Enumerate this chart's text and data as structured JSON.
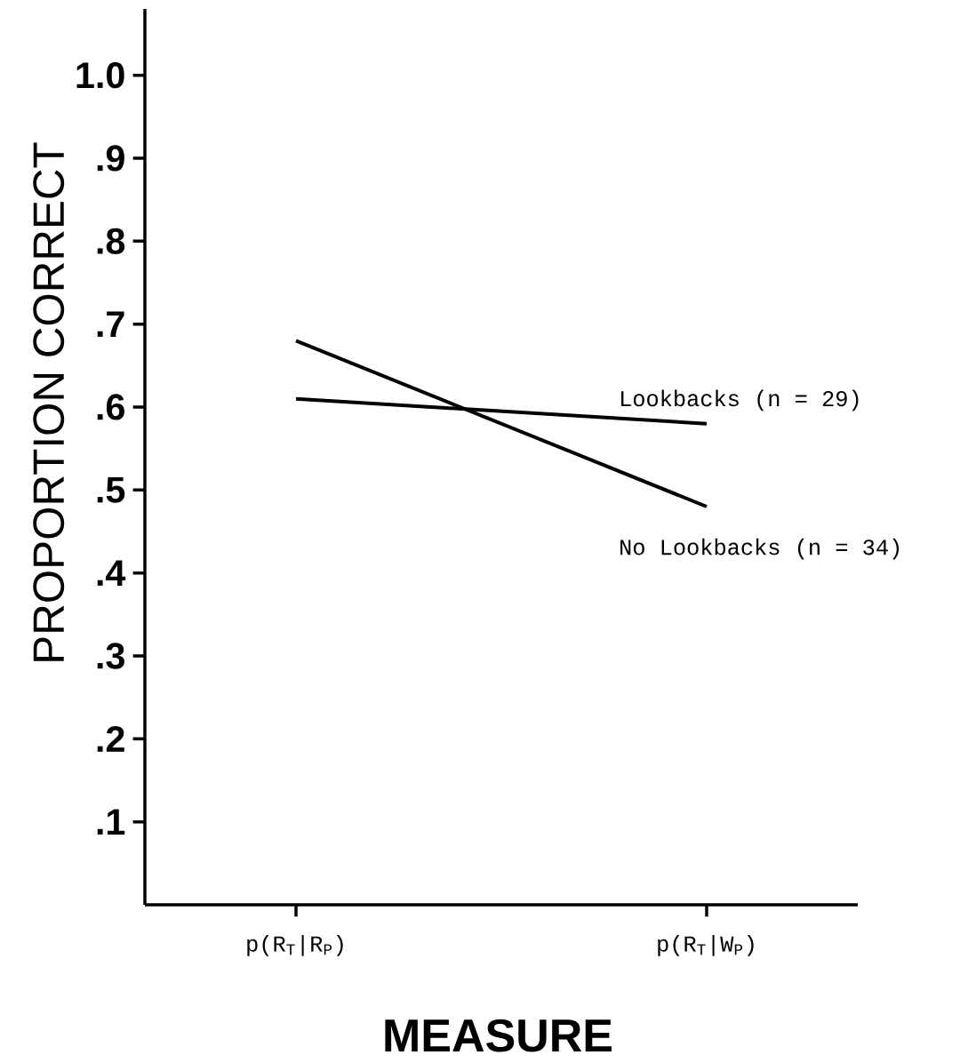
{
  "chart_data": {
    "type": "line",
    "xlabel": "MEASURE",
    "ylabel": "PROPORTION  CORRECT",
    "categories": [
      "p(R$_{T}$|R$_{P}$)",
      "p(R$_{T}$|W$_{P}$)"
    ],
    "series": [
      {
        "name": "Lookbacks (n = 29)",
        "color": "#000000",
        "values": [
          0.61,
          0.58
        ]
      },
      {
        "name": "No Lookbacks (n = 34)",
        "color": "#000000",
        "values": [
          0.68,
          0.48
        ]
      }
    ],
    "ylim": [
      0,
      1.08
    ],
    "yticks": [
      {
        "value": 0.1,
        "label": ".1"
      },
      {
        "value": 0.2,
        "label": ".2"
      },
      {
        "value": 0.3,
        "label": ".3"
      },
      {
        "value": 0.4,
        "label": ".4"
      },
      {
        "value": 0.5,
        "label": ".5"
      },
      {
        "value": 0.6,
        "label": ".6"
      },
      {
        "value": 0.7,
        "label": ".7"
      },
      {
        "value": 0.8,
        "label": ".8"
      },
      {
        "value": 0.9,
        "label": ".9"
      },
      {
        "value": 1.0,
        "label": "1.0"
      }
    ],
    "marker": "none",
    "line_style": "solid"
  }
}
